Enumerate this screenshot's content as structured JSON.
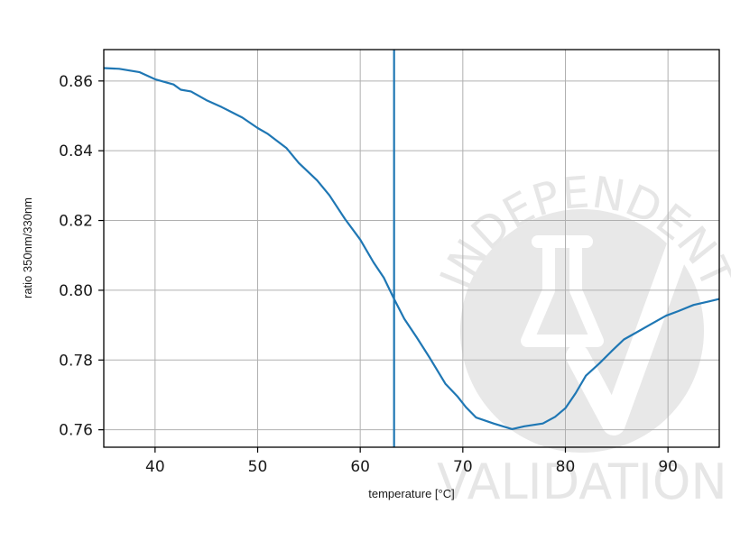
{
  "chart_data": {
    "type": "line",
    "title": "",
    "xlabel": "temperature [°C]",
    "ylabel": "ratio 350nm/330nm",
    "xlim": [
      35,
      95
    ],
    "ylim": [
      0.755,
      0.869
    ],
    "x_ticks": [
      40,
      50,
      60,
      70,
      80,
      90
    ],
    "y_ticks": [
      0.76,
      0.78,
      0.8,
      0.82,
      0.84,
      0.86
    ],
    "x_tick_labels": [
      "40",
      "50",
      "60",
      "70",
      "80",
      "90"
    ],
    "y_tick_labels": [
      "0.76",
      "0.78",
      "0.80",
      "0.82",
      "0.84",
      "0.86"
    ],
    "grid": true,
    "line_color": "#1f77b4",
    "vertical_marker": {
      "x": 63.3
    },
    "series": [
      {
        "x": [
          35,
          36.5,
          38.5,
          40,
          41.8,
          42.5,
          43.5,
          45,
          46.5,
          48.5,
          50,
          51,
          52.8,
          54,
          55.8,
          57,
          58.5,
          60,
          61.3,
          62.3,
          63.3,
          64.3,
          65.5,
          66.8,
          68.3,
          69.5,
          70.3,
          71.3,
          73,
          74.8,
          76,
          77.8,
          79,
          80,
          81,
          82,
          83.3,
          84.5,
          85.7,
          86.8,
          88.3,
          89.8,
          91,
          92.5,
          94,
          95
        ],
        "y": [
          0.8637,
          0.8635,
          0.8625,
          0.8605,
          0.859,
          0.8575,
          0.857,
          0.8545,
          0.8525,
          0.8495,
          0.8465,
          0.8448,
          0.8408,
          0.8365,
          0.8315,
          0.8272,
          0.8205,
          0.8145,
          0.808,
          0.8036,
          0.7975,
          0.7918,
          0.7865,
          0.7805,
          0.7732,
          0.7695,
          0.7665,
          0.7635,
          0.7618,
          0.7602,
          0.761,
          0.7618,
          0.7637,
          0.7662,
          0.7705,
          0.7755,
          0.779,
          0.7825,
          0.7859,
          0.7877,
          0.7902,
          0.7927,
          0.794,
          0.7958,
          0.7968,
          0.7975
        ]
      }
    ]
  },
  "watermark": {
    "top_text": "INDEPENDENT",
    "bottom_text": "VALIDATION",
    "color": "#e6e6e6"
  }
}
